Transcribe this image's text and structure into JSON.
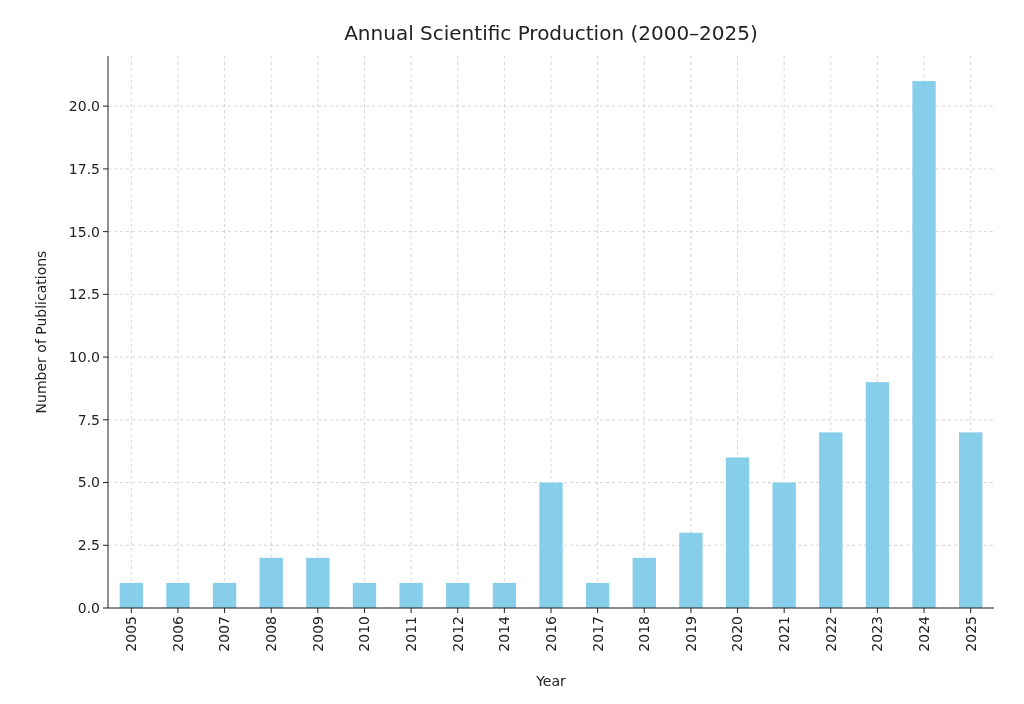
{
  "chart_data": {
    "type": "bar",
    "title": "Annual Scientific Production (2000–2025)",
    "xlabel": "Year",
    "ylabel": "Number of Publications",
    "categories": [
      "2005",
      "2006",
      "2007",
      "2008",
      "2009",
      "2010",
      "2011",
      "2012",
      "2014",
      "2016",
      "2017",
      "2018",
      "2019",
      "2020",
      "2021",
      "2022",
      "2023",
      "2024",
      "2025"
    ],
    "values": [
      1,
      1,
      1,
      2,
      2,
      1,
      1,
      1,
      1,
      5,
      1,
      2,
      3,
      6,
      5,
      7,
      9,
      21,
      7
    ],
    "color": "#87ceeb",
    "ylim": [
      0,
      22
    ],
    "yticks": [
      {
        "value": 0,
        "label": "0.0"
      },
      {
        "value": 2.5,
        "label": "2.5"
      },
      {
        "value": 5,
        "label": "5.0"
      },
      {
        "value": 7.5,
        "label": "7.5"
      },
      {
        "value": 10,
        "label": "10.0"
      },
      {
        "value": 12.5,
        "label": "12.5"
      },
      {
        "value": 15,
        "label": "15.0"
      },
      {
        "value": 17.5,
        "label": "17.5"
      },
      {
        "value": 20,
        "label": "20.0"
      }
    ],
    "grid": true
  }
}
